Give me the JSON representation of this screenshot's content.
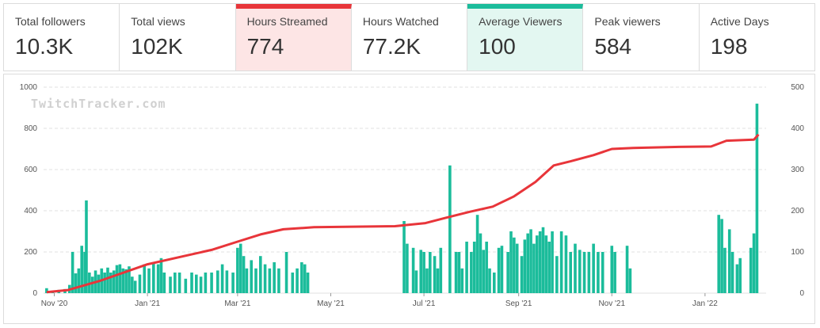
{
  "stats": [
    {
      "label": "Total followers",
      "value": "10.3K"
    },
    {
      "label": "Total views",
      "value": "102K"
    },
    {
      "label": "Hours Streamed",
      "value": "774"
    },
    {
      "label": "Hours Watched",
      "value": "77.2K"
    },
    {
      "label": "Average Viewers",
      "value": "100"
    },
    {
      "label": "Peak viewers",
      "value": "584"
    },
    {
      "label": "Active Days",
      "value": "198"
    }
  ],
  "watermark": "TwitchTracker.com",
  "colors": {
    "bars": "#1bbc9b",
    "line": "#e8353a",
    "grid": "#e2e2e2"
  },
  "chart_data": {
    "type": "bar",
    "title": "",
    "xlabel": "",
    "ylabel": "",
    "x_ticks": [
      "Nov '20",
      "Jan '21",
      "Mar '21",
      "May '21",
      "Jul '21",
      "Sep '21",
      "Nov '21",
      "Jan '22"
    ],
    "y_left_ticks": [
      0,
      200,
      400,
      600,
      800,
      1000
    ],
    "y_right_ticks": [
      0,
      100,
      200,
      300,
      400,
      500
    ],
    "ylim_left": [
      0,
      1000
    ],
    "ylim_right": [
      0,
      500
    ],
    "grid": true,
    "legend": "none",
    "x_start": "2020-10-25",
    "x_end": "2022-02-10",
    "series": [
      {
        "axis": "right",
        "kind": "bar",
        "points": [
          [
            "2020-10-27",
            12
          ],
          [
            "2020-10-31",
            5
          ],
          [
            "2020-11-04",
            8
          ],
          [
            "2020-11-08",
            10
          ],
          [
            "2020-11-11",
            20
          ],
          [
            "2020-11-13",
            100
          ],
          [
            "2020-11-15",
            48
          ],
          [
            "2020-11-17",
            60
          ],
          [
            "2020-11-19",
            115
          ],
          [
            "2020-11-21",
            100
          ],
          [
            "2020-11-22",
            225
          ],
          [
            "2020-11-24",
            50
          ],
          [
            "2020-11-26",
            40
          ],
          [
            "2020-11-28",
            55
          ],
          [
            "2020-11-30",
            45
          ],
          [
            "2020-12-02",
            60
          ],
          [
            "2020-12-04",
            50
          ],
          [
            "2020-12-06",
            62
          ],
          [
            "2020-12-08",
            50
          ],
          [
            "2020-12-10",
            55
          ],
          [
            "2020-12-12",
            68
          ],
          [
            "2020-12-14",
            70
          ],
          [
            "2020-12-16",
            60
          ],
          [
            "2020-12-18",
            58
          ],
          [
            "2020-12-20",
            65
          ],
          [
            "2020-12-22",
            40
          ],
          [
            "2020-12-24",
            30
          ],
          [
            "2020-12-27",
            45
          ],
          [
            "2020-12-30",
            70
          ],
          [
            "2021-01-02",
            60
          ],
          [
            "2021-01-05",
            75
          ],
          [
            "2021-01-08",
            70
          ],
          [
            "2021-01-10",
            85
          ],
          [
            "2021-01-12",
            50
          ],
          [
            "2021-01-16",
            40
          ],
          [
            "2021-01-19",
            50
          ],
          [
            "2021-01-22",
            50
          ],
          [
            "2021-01-26",
            35
          ],
          [
            "2021-01-30",
            50
          ],
          [
            "2021-02-02",
            45
          ],
          [
            "2021-02-05",
            40
          ],
          [
            "2021-02-08",
            50
          ],
          [
            "2021-02-12",
            50
          ],
          [
            "2021-02-16",
            55
          ],
          [
            "2021-02-19",
            70
          ],
          [
            "2021-02-22",
            55
          ],
          [
            "2021-02-26",
            50
          ],
          [
            "2021-03-01",
            110
          ],
          [
            "2021-03-03",
            120
          ],
          [
            "2021-03-05",
            90
          ],
          [
            "2021-03-07",
            60
          ],
          [
            "2021-03-10",
            80
          ],
          [
            "2021-03-13",
            60
          ],
          [
            "2021-03-16",
            90
          ],
          [
            "2021-03-19",
            70
          ],
          [
            "2021-03-22",
            60
          ],
          [
            "2021-03-25",
            75
          ],
          [
            "2021-03-28",
            60
          ],
          [
            "2021-04-02",
            100
          ],
          [
            "2021-04-06",
            50
          ],
          [
            "2021-04-09",
            60
          ],
          [
            "2021-04-12",
            75
          ],
          [
            "2021-04-14",
            70
          ],
          [
            "2021-04-16",
            50
          ],
          [
            "2021-06-18",
            175
          ],
          [
            "2021-06-20",
            120
          ],
          [
            "2021-06-24",
            110
          ],
          [
            "2021-06-26",
            55
          ],
          [
            "2021-06-29",
            105
          ],
          [
            "2021-07-01",
            100
          ],
          [
            "2021-07-03",
            60
          ],
          [
            "2021-07-05",
            100
          ],
          [
            "2021-07-08",
            90
          ],
          [
            "2021-07-10",
            60
          ],
          [
            "2021-07-12",
            110
          ],
          [
            "2021-07-18",
            310
          ],
          [
            "2021-07-22",
            100
          ],
          [
            "2021-07-24",
            100
          ],
          [
            "2021-07-26",
            60
          ],
          [
            "2021-07-29",
            125
          ],
          [
            "2021-08-01",
            100
          ],
          [
            "2021-08-03",
            125
          ],
          [
            "2021-08-05",
            190
          ],
          [
            "2021-08-07",
            145
          ],
          [
            "2021-08-09",
            105
          ],
          [
            "2021-08-11",
            125
          ],
          [
            "2021-08-13",
            60
          ],
          [
            "2021-08-16",
            50
          ],
          [
            "2021-08-19",
            110
          ],
          [
            "2021-08-21",
            115
          ],
          [
            "2021-08-25",
            100
          ],
          [
            "2021-08-27",
            150
          ],
          [
            "2021-08-29",
            135
          ],
          [
            "2021-08-31",
            120
          ],
          [
            "2021-09-03",
            90
          ],
          [
            "2021-09-05",
            130
          ],
          [
            "2021-09-07",
            145
          ],
          [
            "2021-09-09",
            155
          ],
          [
            "2021-09-11",
            120
          ],
          [
            "2021-09-13",
            140
          ],
          [
            "2021-09-15",
            150
          ],
          [
            "2021-09-17",
            160
          ],
          [
            "2021-09-19",
            140
          ],
          [
            "2021-09-21",
            125
          ],
          [
            "2021-09-23",
            150
          ],
          [
            "2021-09-26",
            90
          ],
          [
            "2021-09-29",
            150
          ],
          [
            "2021-10-02",
            140
          ],
          [
            "2021-10-05",
            100
          ],
          [
            "2021-10-08",
            120
          ],
          [
            "2021-10-11",
            105
          ],
          [
            "2021-10-14",
            100
          ],
          [
            "2021-10-17",
            100
          ],
          [
            "2021-10-20",
            120
          ],
          [
            "2021-10-23",
            100
          ],
          [
            "2021-10-26",
            100
          ],
          [
            "2021-11-01",
            115
          ],
          [
            "2021-11-03",
            100
          ],
          [
            "2021-11-11",
            115
          ],
          [
            "2021-11-13",
            60
          ],
          [
            "2022-01-10",
            190
          ],
          [
            "2022-01-12",
            180
          ],
          [
            "2022-01-14",
            110
          ],
          [
            "2022-01-17",
            155
          ],
          [
            "2022-01-19",
            100
          ],
          [
            "2022-01-22",
            70
          ],
          [
            "2022-01-24",
            85
          ],
          [
            "2022-01-31",
            110
          ],
          [
            "2022-02-02",
            145
          ],
          [
            "2022-02-04",
            460
          ]
        ]
      },
      {
        "axis": "left",
        "kind": "line",
        "name": "",
        "points": [
          [
            "2020-10-27",
            5
          ],
          [
            "2020-11-10",
            15
          ],
          [
            "2020-12-01",
            60
          ],
          [
            "2021-01-01",
            140
          ],
          [
            "2021-01-25",
            180
          ],
          [
            "2021-02-12",
            210
          ],
          [
            "2021-03-01",
            250
          ],
          [
            "2021-03-16",
            285
          ],
          [
            "2021-03-31",
            310
          ],
          [
            "2021-04-20",
            320
          ],
          [
            "2021-06-12",
            325
          ],
          [
            "2021-07-02",
            340
          ],
          [
            "2021-07-15",
            365
          ],
          [
            "2021-07-31",
            395
          ],
          [
            "2021-08-15",
            420
          ],
          [
            "2021-08-29",
            470
          ],
          [
            "2021-09-12",
            540
          ],
          [
            "2021-09-24",
            620
          ],
          [
            "2021-10-05",
            640
          ],
          [
            "2021-10-20",
            670
          ],
          [
            "2021-11-01",
            700
          ],
          [
            "2021-11-15",
            705
          ],
          [
            "2021-12-15",
            710
          ],
          [
            "2022-01-05",
            712
          ],
          [
            "2022-01-15",
            740
          ],
          [
            "2022-02-02",
            745
          ],
          [
            "2022-02-05",
            770
          ]
        ]
      }
    ]
  }
}
